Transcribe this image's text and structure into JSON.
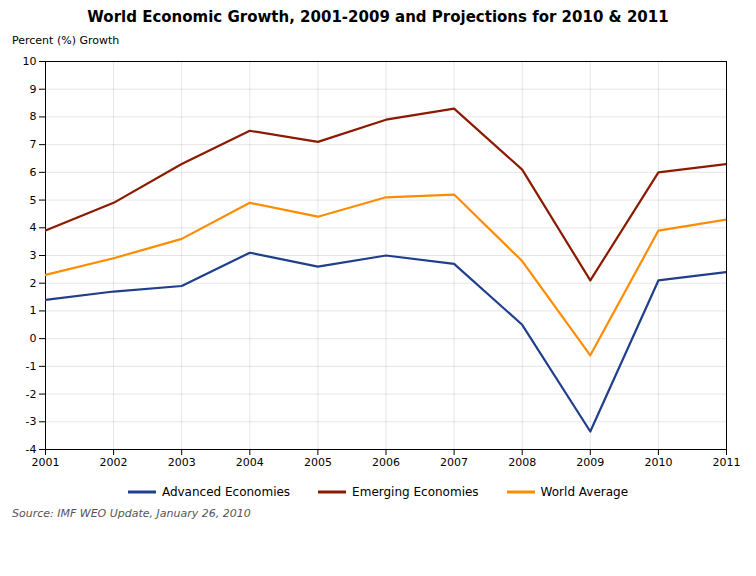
{
  "chart_data": {
    "type": "line",
    "title": "World Economic Growth, 2001-2009 and Projections for 2010 & 2011",
    "ylabel": "Percent (%) Growth",
    "caption": "Source: IMF  WEO Update, January 26, 2010",
    "x": [
      2001,
      2002,
      2003,
      2004,
      2005,
      2006,
      2007,
      2008,
      2009,
      2010,
      2011
    ],
    "series": [
      {
        "name": "Advanced Economies",
        "color": "#1F3E8C",
        "values": [
          1.4,
          1.7,
          1.9,
          3.1,
          2.6,
          3.0,
          2.7,
          0.5,
          -3.35,
          2.1,
          2.4
        ]
      },
      {
        "name": "Emerging Economies",
        "color": "#8B1A00",
        "values": [
          3.9,
          4.9,
          6.3,
          7.5,
          7.1,
          7.9,
          8.3,
          6.1,
          2.1,
          6.0,
          6.3
        ]
      },
      {
        "name": "World Average",
        "color": "#FF8C00",
        "values": [
          2.3,
          2.9,
          3.6,
          4.9,
          4.4,
          5.1,
          5.2,
          2.8,
          -0.6,
          3.9,
          4.3
        ]
      }
    ],
    "xlim": [
      2001,
      2011
    ],
    "xticks": [
      2001,
      2002,
      2003,
      2004,
      2005,
      2006,
      2007,
      2008,
      2009,
      2010,
      2011
    ],
    "ylim": [
      -4,
      10
    ],
    "yticks": [
      -4,
      -3,
      -2,
      -1,
      0,
      1,
      2,
      3,
      4,
      5,
      6,
      7,
      8,
      9,
      10
    ],
    "grid": true,
    "legend": "bottom"
  }
}
